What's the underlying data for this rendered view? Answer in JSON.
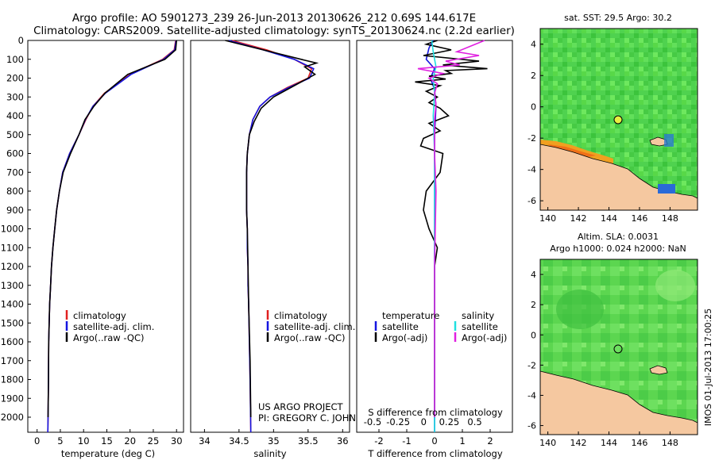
{
  "header": {
    "line1": "Argo profile: AO 5901273_239 26-Jun-2013 20130626_212 0.69S 144.617E",
    "line2": "Climatology: CARS2009. Satellite-adjusted climatology: synTS_20130624.nc (2.2d earlier)"
  },
  "chart_data": [
    {
      "type": "line",
      "xlabel": "temperature (deg C)",
      "ylabel": "",
      "xlim": [
        -2,
        31.5
      ],
      "ylim": [
        2080,
        0
      ],
      "xticks": [
        "0",
        "5",
        "10",
        "15",
        "20",
        "25",
        "30"
      ],
      "xtick_values": [
        0,
        5,
        10,
        15,
        20,
        25,
        30
      ],
      "yticks": [
        "0",
        "100",
        "200",
        "300",
        "400",
        "500",
        "600",
        "700",
        "800",
        "900",
        "1000",
        "1100",
        "1200",
        "1300",
        "1400",
        "1500",
        "1600",
        "1700",
        "1800",
        "1900",
        "2000"
      ],
      "legend": [
        "climatology",
        "satellite-adj. clim.",
        "Argo(..raw -QC)"
      ],
      "series": [
        {
          "name": "climatology",
          "color": "#e02020",
          "x": [
            29.8,
            29.5,
            27,
            20,
            14.5,
            12,
            10.5,
            9,
            7,
            5.5,
            4.8,
            4.2,
            3.8,
            3.4,
            3.1,
            2.9,
            2.7,
            2.6,
            2.5,
            2.45,
            2.35,
            2.3
          ],
          "y": [
            0,
            50,
            100,
            180,
            280,
            350,
            420,
            500,
            600,
            700,
            800,
            900,
            1000,
            1100,
            1200,
            1300,
            1400,
            1500,
            1600,
            1800,
            2000,
            2080
          ]
        },
        {
          "name": "satellite-adj. clim.",
          "color": "#1515e0",
          "x": [
            29.9,
            29.6,
            27.2,
            20.2,
            14.7,
            12,
            10.4,
            9,
            7,
            5.5,
            4.8,
            4.2,
            3.8,
            3.4,
            3.1,
            2.9,
            2.7,
            2.6,
            2.5,
            2.45,
            2.35,
            2.3
          ],
          "y": [
            0,
            50,
            100,
            180,
            280,
            350,
            420,
            500,
            600,
            700,
            800,
            900,
            1000,
            1100,
            1200,
            1300,
            1400,
            1500,
            1600,
            1800,
            2000,
            2080
          ]
        },
        {
          "name": "Argo(..raw -QC)",
          "color": "#000000",
          "x": [
            30,
            29.8,
            27.5,
            19.5,
            14.6,
            12.2,
            10.3,
            9,
            7.2,
            5.6,
            4.8,
            4.2,
            3.8,
            3.4,
            3.1,
            2.9,
            2.7,
            2.6,
            2.5,
            2.45,
            2.35
          ],
          "y": [
            0,
            50,
            100,
            180,
            280,
            350,
            420,
            500,
            600,
            700,
            800,
            900,
            1000,
            1100,
            1200,
            1300,
            1400,
            1500,
            1600,
            1800,
            2000
          ]
        }
      ]
    },
    {
      "type": "line",
      "xlabel": "salinity",
      "xlim": [
        33.8,
        36.1
      ],
      "ylim": [
        2080,
        0
      ],
      "xticks": [
        "34",
        "34.5",
        "35",
        "35.5",
        "36"
      ],
      "xtick_values": [
        34,
        34.5,
        35,
        35.5,
        36
      ],
      "legend": [
        "climatology",
        "satellite-adj. clim.",
        "Argo(..raw -QC)"
      ],
      "annotations": [
        "US ARGO PROJECT",
        "PI: GREGORY C. JOHNSON"
      ],
      "series": [
        {
          "name": "climatology",
          "color": "#e02020",
          "x": [
            34.4,
            34.9,
            35.3,
            35.55,
            35.5,
            35.2,
            34.95,
            34.8,
            34.7,
            34.65,
            34.62,
            34.61,
            34.61,
            34.61,
            34.62,
            34.62,
            34.63,
            34.63,
            34.64,
            34.65,
            34.66,
            34.67
          ],
          "y": [
            0,
            50,
            100,
            150,
            200,
            250,
            300,
            350,
            420,
            500,
            600,
            700,
            800,
            900,
            1000,
            1100,
            1200,
            1300,
            1400,
            1600,
            1800,
            2080
          ]
        },
        {
          "name": "satellite-adj. clim.",
          "color": "#1515e0",
          "x": [
            34.35,
            34.85,
            35.3,
            35.58,
            35.52,
            35.22,
            34.95,
            34.8,
            34.7,
            34.65,
            34.62,
            34.61,
            34.61,
            34.61,
            34.62,
            34.62,
            34.63,
            34.63,
            34.64,
            34.65,
            34.66,
            34.67
          ],
          "y": [
            0,
            50,
            100,
            150,
            200,
            250,
            300,
            350,
            420,
            500,
            600,
            700,
            800,
            900,
            1000,
            1100,
            1200,
            1300,
            1400,
            1600,
            1800,
            2080
          ]
        },
        {
          "name": "Argo(..raw -QC)",
          "color": "#000000",
          "x": [
            34.3,
            34.85,
            35.4,
            35.62,
            35.45,
            35.6,
            35.3,
            35.0,
            34.82,
            34.72,
            34.65,
            34.62,
            34.61,
            34.61,
            34.61,
            34.62,
            34.63,
            34.64,
            34.66,
            34.67
          ],
          "y": [
            0,
            50,
            100,
            120,
            140,
            180,
            240,
            300,
            360,
            430,
            500,
            600,
            700,
            800,
            900,
            1000,
            1200,
            1400,
            1700,
            2000
          ]
        }
      ]
    },
    {
      "type": "line",
      "xlabel": "T difference from climatology",
      "xlabel2": "S difference from climatology",
      "xlim": [
        -2.8,
        2.8
      ],
      "ylim": [
        2080,
        0
      ],
      "xticks": [
        "-2",
        "-1",
        "0",
        "1",
        "2"
      ],
      "xtick_values": [
        -2,
        -1,
        0,
        1,
        2
      ],
      "xticks2": [
        "-0.5",
        "-0.25",
        "0",
        "0.25",
        "0.5"
      ],
      "legend_headers": [
        "temperature",
        "salinity"
      ],
      "legend": [
        "satellite",
        "Argo(-adj)",
        "satellite",
        "Argo(-adj)"
      ],
      "series": [
        {
          "name": "satellite",
          "color": "#1515e0",
          "x": [
            -0.05,
            -0.2,
            -0.3,
            0,
            -0.15,
            0,
            0.05,
            0,
            0,
            0,
            0,
            0,
            0,
            0
          ],
          "y": [
            0,
            40,
            100,
            150,
            200,
            260,
            350,
            500,
            700,
            900,
            1100,
            1400,
            1800,
            2080
          ]
        },
        {
          "name": "Argo(-adj)",
          "color": "#000000",
          "x": [
            0.1,
            -0.3,
            0.6,
            -0.4,
            1.6,
            0.3,
            1.9,
            0.4,
            0.6,
            -0.2,
            0.4,
            -0.7,
            0.2,
            -0.3,
            0.1,
            -0.2,
            0.2,
            0.5,
            -0.2,
            0.2,
            -0.4,
            -0.5,
            0.3,
            0.2,
            -0.3,
            -0.4,
            -0.2,
            0.1,
            0,
            0,
            0,
            0
          ],
          "y": [
            0,
            20,
            50,
            80,
            110,
            130,
            150,
            160,
            175,
            190,
            205,
            220,
            240,
            270,
            300,
            330,
            360,
            400,
            440,
            480,
            520,
            560,
            600,
            700,
            800,
            900,
            1000,
            1100,
            1200,
            1300,
            1600,
            2000
          ]
        },
        {
          "name": "satellite",
          "color": "#20e0e0",
          "x": [
            -0.1,
            -0.05,
            0.05,
            -0.05,
            0,
            -0.05,
            0,
            0,
            0,
            0,
            0,
            0
          ],
          "y": [
            0,
            60,
            140,
            200,
            280,
            400,
            600,
            900,
            1200,
            1500,
            1800,
            2080
          ]
        },
        {
          "name": "Argo(-adj)",
          "color": "#e020e0",
          "x": [
            1.8,
            1.3,
            0.8,
            1.6,
            0.4,
            0.9,
            -0.6,
            0.3,
            -0.2,
            0.1,
            0,
            0.05,
            0,
            0,
            0.05,
            0,
            0
          ],
          "y": [
            0,
            30,
            60,
            80,
            110,
            130,
            150,
            175,
            200,
            230,
            280,
            340,
            420,
            600,
            800,
            1200,
            2000
          ]
        }
      ]
    },
    {
      "type": "heatmap",
      "title": "sat. SST: 29.5 Argo: 30.2",
      "xticks": [
        "140",
        "142",
        "144",
        "146",
        "148"
      ],
      "yticks": [
        "4",
        "2",
        "0",
        "-2",
        "-4",
        "-6"
      ],
      "xlim": [
        139.5,
        149.8
      ],
      "ylim": [
        -6.6,
        5
      ],
      "marker": {
        "lon": 144.62,
        "lat": -0.69
      }
    },
    {
      "type": "heatmap",
      "title": "Altim. SLA: 0.0031",
      "subtitle": "Argo h1000: 0.024 h2000: NaN",
      "xticks": [
        "140",
        "142",
        "144",
        "146",
        "148"
      ],
      "yticks": [
        "4",
        "2",
        "0",
        "-2",
        "-4",
        "-6"
      ],
      "xlim": [
        139.5,
        149.8
      ],
      "ylim": [
        -6.6,
        5
      ],
      "marker": {
        "lon": 144.62,
        "lat": -0.69
      }
    }
  ],
  "footer": {
    "imos_stamp": "IMOS 01-Jul-2013 17:00:25"
  }
}
